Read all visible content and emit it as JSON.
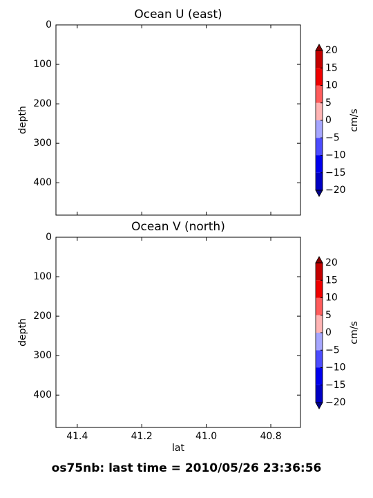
{
  "chart_data": [
    {
      "type": "contour",
      "title": "Ocean U (east)",
      "ylabel": "depth",
      "ylim": [
        482,
        0
      ],
      "yticks": [
        0,
        100,
        200,
        300,
        400
      ],
      "colorbar": {
        "label": "cm/s",
        "levels": [
          {
            "value": -20,
            "label": "−20"
          },
          {
            "value": -15,
            "label": "−15"
          },
          {
            "value": -10,
            "label": "−10"
          },
          {
            "value": -5,
            "label": "−5"
          },
          0,
          5,
          10,
          15,
          20
        ],
        "colors": [
          "#0000c4",
          "#0000ee",
          "#4c4cff",
          "#a6a6ff",
          "#ffb4b4",
          "#ff5c5c",
          "#f00000",
          "#c40000"
        ],
        "under_color": "#00008a",
        "over_color": "#860000"
      }
    },
    {
      "type": "contour",
      "title": "Ocean V (north)",
      "ylabel": "depth",
      "xlabel": "lat",
      "xlim": [
        41.466,
        40.708
      ],
      "xticks": [
        41.4,
        41.2,
        {
          "value": 41,
          "label": "41.0"
        },
        40.8
      ],
      "ylim": [
        482,
        0
      ],
      "yticks": [
        0,
        100,
        200,
        300,
        400
      ],
      "colorbar": {
        "label": "cm/s",
        "levels": [
          {
            "value": -20,
            "label": "−20"
          },
          {
            "value": -15,
            "label": "−15"
          },
          {
            "value": -10,
            "label": "−10"
          },
          {
            "value": -5,
            "label": "−5"
          },
          0,
          5,
          10,
          15,
          20
        ],
        "colors": [
          "#0000c4",
          "#0000ee",
          "#4c4cff",
          "#a6a6ff",
          "#ffb4b4",
          "#ff5c5c",
          "#f00000",
          "#c40000"
        ],
        "under_color": "#00008a",
        "over_color": "#860000"
      }
    }
  ],
  "footer": "os75nb: last time = 2010/05/26 23:36:56"
}
